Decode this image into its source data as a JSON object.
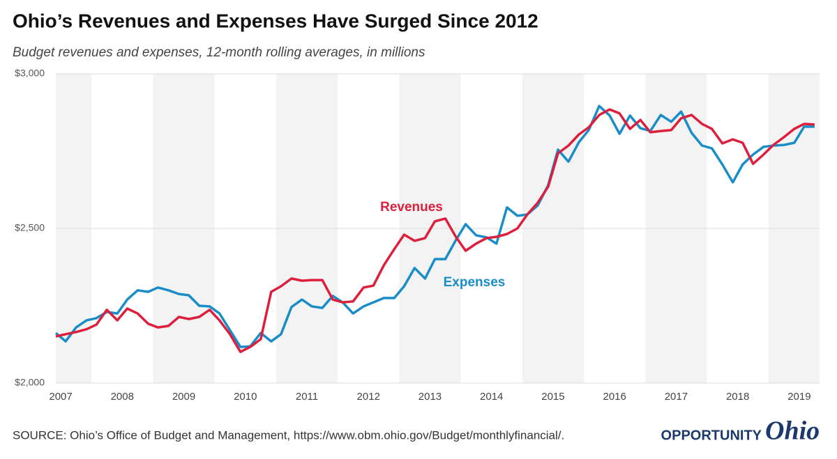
{
  "chart_data": {
    "type": "line",
    "title": "Ohio’s Revenues and Expenses Have Surged Since 2012",
    "subtitle": "Budget revenues and expenses, 12-month rolling averages, in millions",
    "source": "SOURCE: Ohio’s Office of Budget and Management, https://www.obm.ohio.gov/Budget/monthlyfinancial/.",
    "logo": {
      "text": "OPPORTUNITY",
      "script": "Ohio"
    },
    "x": [
      2007.42,
      2007.58,
      2007.75,
      2007.92,
      2008.08,
      2008.25,
      2008.42,
      2008.58,
      2008.75,
      2008.92,
      2009.08,
      2009.25,
      2009.42,
      2009.58,
      2009.75,
      2009.92,
      2010.08,
      2010.25,
      2010.42,
      2010.58,
      2010.75,
      2010.92,
      2011.08,
      2011.25,
      2011.42,
      2011.58,
      2011.75,
      2011.92,
      2012.08,
      2012.25,
      2012.42,
      2012.58,
      2012.75,
      2012.92,
      2013.08,
      2013.25,
      2013.42,
      2013.58,
      2013.75,
      2013.92,
      2014.08,
      2014.25,
      2014.42,
      2014.58,
      2014.75,
      2014.92,
      2015.08,
      2015.25,
      2015.42,
      2015.58,
      2015.75,
      2015.92,
      2016.08,
      2016.25,
      2016.42,
      2016.58,
      2016.75,
      2016.92,
      2017.08,
      2017.25,
      2017.42,
      2017.58,
      2017.75,
      2017.92,
      2018.08,
      2018.25,
      2018.42,
      2018.58,
      2018.75,
      2018.92,
      2019.08,
      2019.25,
      2019.42,
      2019.58,
      2019.75
    ],
    "series": [
      {
        "name": "Revenues",
        "color": "#dc1f3c",
        "values": [
          2151,
          2158,
          2165,
          2174,
          2189,
          2237,
          2203,
          2241,
          2225,
          2192,
          2180,
          2185,
          2214,
          2207,
          2214,
          2237,
          2203,
          2158,
          2101,
          2117,
          2142,
          2295,
          2313,
          2338,
          2331,
          2333,
          2333,
          2270,
          2261,
          2264,
          2309,
          2315,
          2381,
          2433,
          2480,
          2460,
          2469,
          2523,
          2532,
          2473,
          2428,
          2451,
          2469,
          2473,
          2482,
          2500,
          2545,
          2583,
          2635,
          2743,
          2768,
          2804,
          2827,
          2867,
          2885,
          2872,
          2822,
          2851,
          2811,
          2815,
          2818,
          2856,
          2867,
          2838,
          2822,
          2775,
          2788,
          2777,
          2709,
          2739,
          2770,
          2795,
          2822,
          2838,
          2836
        ]
      },
      {
        "name": "Expenses",
        "color": "#1a8dc8",
        "values": [
          2162,
          2135,
          2180,
          2203,
          2210,
          2230,
          2225,
          2270,
          2300,
          2295,
          2309,
          2300,
          2288,
          2284,
          2250,
          2248,
          2225,
          2171,
          2117,
          2119,
          2162,
          2135,
          2158,
          2246,
          2270,
          2248,
          2243,
          2282,
          2261,
          2225,
          2248,
          2261,
          2275,
          2275,
          2313,
          2372,
          2338,
          2401,
          2401,
          2462,
          2514,
          2478,
          2471,
          2451,
          2568,
          2541,
          2545,
          2574,
          2640,
          2755,
          2716,
          2779,
          2818,
          2896,
          2865,
          2806,
          2865,
          2824,
          2815,
          2867,
          2845,
          2878,
          2809,
          2768,
          2759,
          2707,
          2649,
          2707,
          2739,
          2764,
          2768,
          2770,
          2777,
          2829,
          2829
        ]
      }
    ],
    "xlim": [
      2007.42,
      2019.83
    ],
    "xticks": [
      {
        "value": 2007.5,
        "label": "2007"
      },
      {
        "value": 2008.5,
        "label": "2008"
      },
      {
        "value": 2009.5,
        "label": "2009"
      },
      {
        "value": 2010.5,
        "label": "2010"
      },
      {
        "value": 2011.5,
        "label": "2011"
      },
      {
        "value": 2012.5,
        "label": "2012"
      },
      {
        "value": 2013.5,
        "label": "2013"
      },
      {
        "value": 2014.5,
        "label": "2014"
      },
      {
        "value": 2015.5,
        "label": "2015"
      },
      {
        "value": 2016.5,
        "label": "2016"
      },
      {
        "value": 2017.5,
        "label": "2017"
      },
      {
        "value": 2018.5,
        "label": "2018"
      },
      {
        "value": 2019.5,
        "label": "2019"
      }
    ],
    "ylim": [
      2000,
      3000
    ],
    "yticks": [
      {
        "value": 2000,
        "label": "$2,000"
      },
      {
        "value": 2500,
        "label": "$2,500"
      },
      {
        "value": 3000,
        "label": "$3,000"
      }
    ],
    "grid": true,
    "annotations": [
      {
        "text": "Revenues"
      },
      {
        "text": "Expenses"
      }
    ]
  }
}
